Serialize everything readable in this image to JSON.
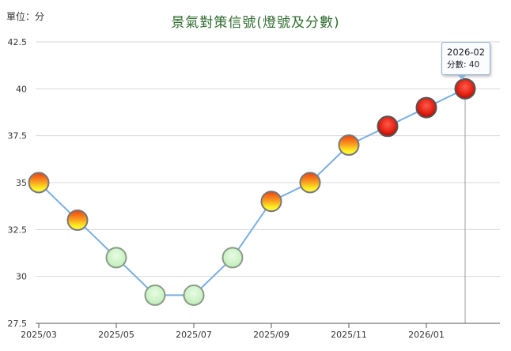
{
  "unit_label": "單位：分",
  "colors": {
    "line": "#7aaee0",
    "grid": "#d9d9d9",
    "axis": "#555555",
    "title": "#2e6b2e",
    "signal_red": "#e02020",
    "signal_yellow_red": "#f4c020",
    "signal_green": "#c8f0c0"
  },
  "tooltip": {
    "date": "2026-02",
    "value_text": "分數: 40"
  },
  "chart_data": {
    "type": "line",
    "title": "景氣對策信號(燈號及分數)",
    "xlabel": "",
    "ylabel": "單位：分",
    "ylim": [
      27.5,
      42.5
    ],
    "yticks": [
      "27.5",
      "30",
      "32.5",
      "35",
      "37.5",
      "40",
      "42.5"
    ],
    "ytick_values": [
      27.5,
      30,
      32.5,
      35,
      37.5,
      40,
      42.5
    ],
    "x_tick_labels": [
      "2025/03",
      "2025/05",
      "2025/07",
      "2025/09",
      "2025/11",
      "2026/01"
    ],
    "grid": true,
    "series": [
      {
        "x": [
          "2025/03",
          "2025/04",
          "2025/05",
          "2025/06",
          "2025/07",
          "2025/08",
          "2025/09",
          "2025/10",
          "2025/11",
          "2025/12",
          "2026/01",
          "2026/02"
        ],
        "values": [
          35,
          33,
          31,
          29,
          29,
          31,
          34,
          35,
          37,
          38,
          39,
          40
        ],
        "signals": [
          "yellow-red",
          "yellow-red",
          "green",
          "green",
          "green",
          "green",
          "yellow-red",
          "yellow-red",
          "yellow-red",
          "red",
          "red",
          "red"
        ]
      }
    ],
    "highlighted_point": "2026/02"
  }
}
